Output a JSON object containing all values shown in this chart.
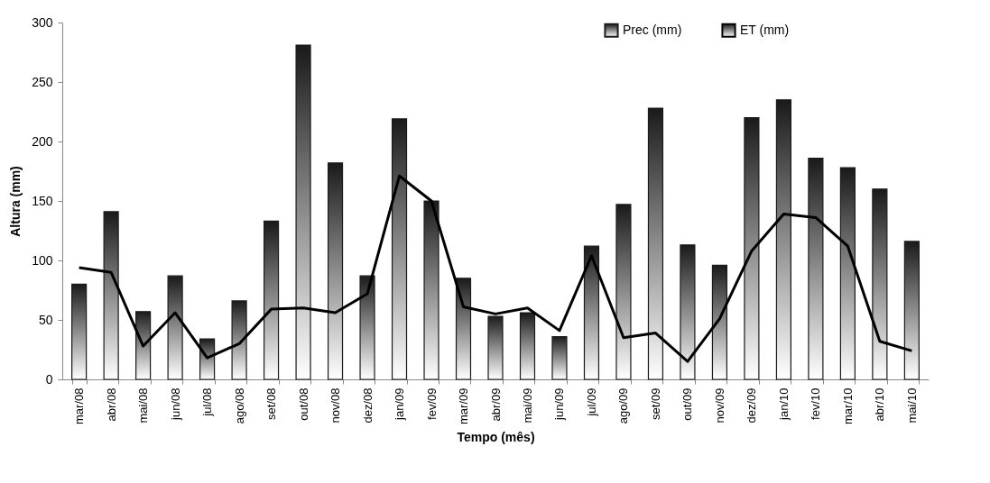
{
  "chart_data": {
    "type": "bar",
    "xlabel": "Tempo (mês)",
    "ylabel": "Altura (mm)",
    "categories": [
      "mar/08",
      "abr/08",
      "mai/08",
      "jun/08",
      "jul/08",
      "ago/08",
      "set/08",
      "out/08",
      "nov/08",
      "dez/08",
      "jan/09",
      "fev/09",
      "mar/09",
      "abr/09",
      "mai/09",
      "jun/09",
      "jul/09",
      "ago/09",
      "set/09",
      "out/09",
      "nov/09",
      "dez/09",
      "jan/10",
      "fev/10",
      "mar/10",
      "abr/10",
      "mai/10"
    ],
    "series": [
      {
        "name": "Prec (mm)",
        "color": "#1a1a1a",
        "values": [
          80,
          141,
          57,
          87,
          34,
          66,
          133,
          281,
          182,
          87,
          219,
          150,
          85,
          53,
          56,
          36,
          112,
          147,
          228,
          113,
          96,
          220,
          235,
          186,
          178,
          160,
          116
        ]
      },
      {
        "name": "ET (mm)",
        "type": "line",
        "color": "#000000",
        "values": [
          94,
          90,
          28,
          56,
          18,
          30,
          59,
          60,
          56,
          72,
          171,
          150,
          61,
          55,
          60,
          41,
          104,
          35,
          39,
          15,
          51,
          108,
          139,
          136,
          112,
          32,
          24
        ]
      }
    ],
    "ylim": [
      0,
      300
    ],
    "yticks": [
      0,
      50,
      100,
      150,
      200,
      250,
      300
    ],
    "grid": false,
    "legend": "top right"
  }
}
